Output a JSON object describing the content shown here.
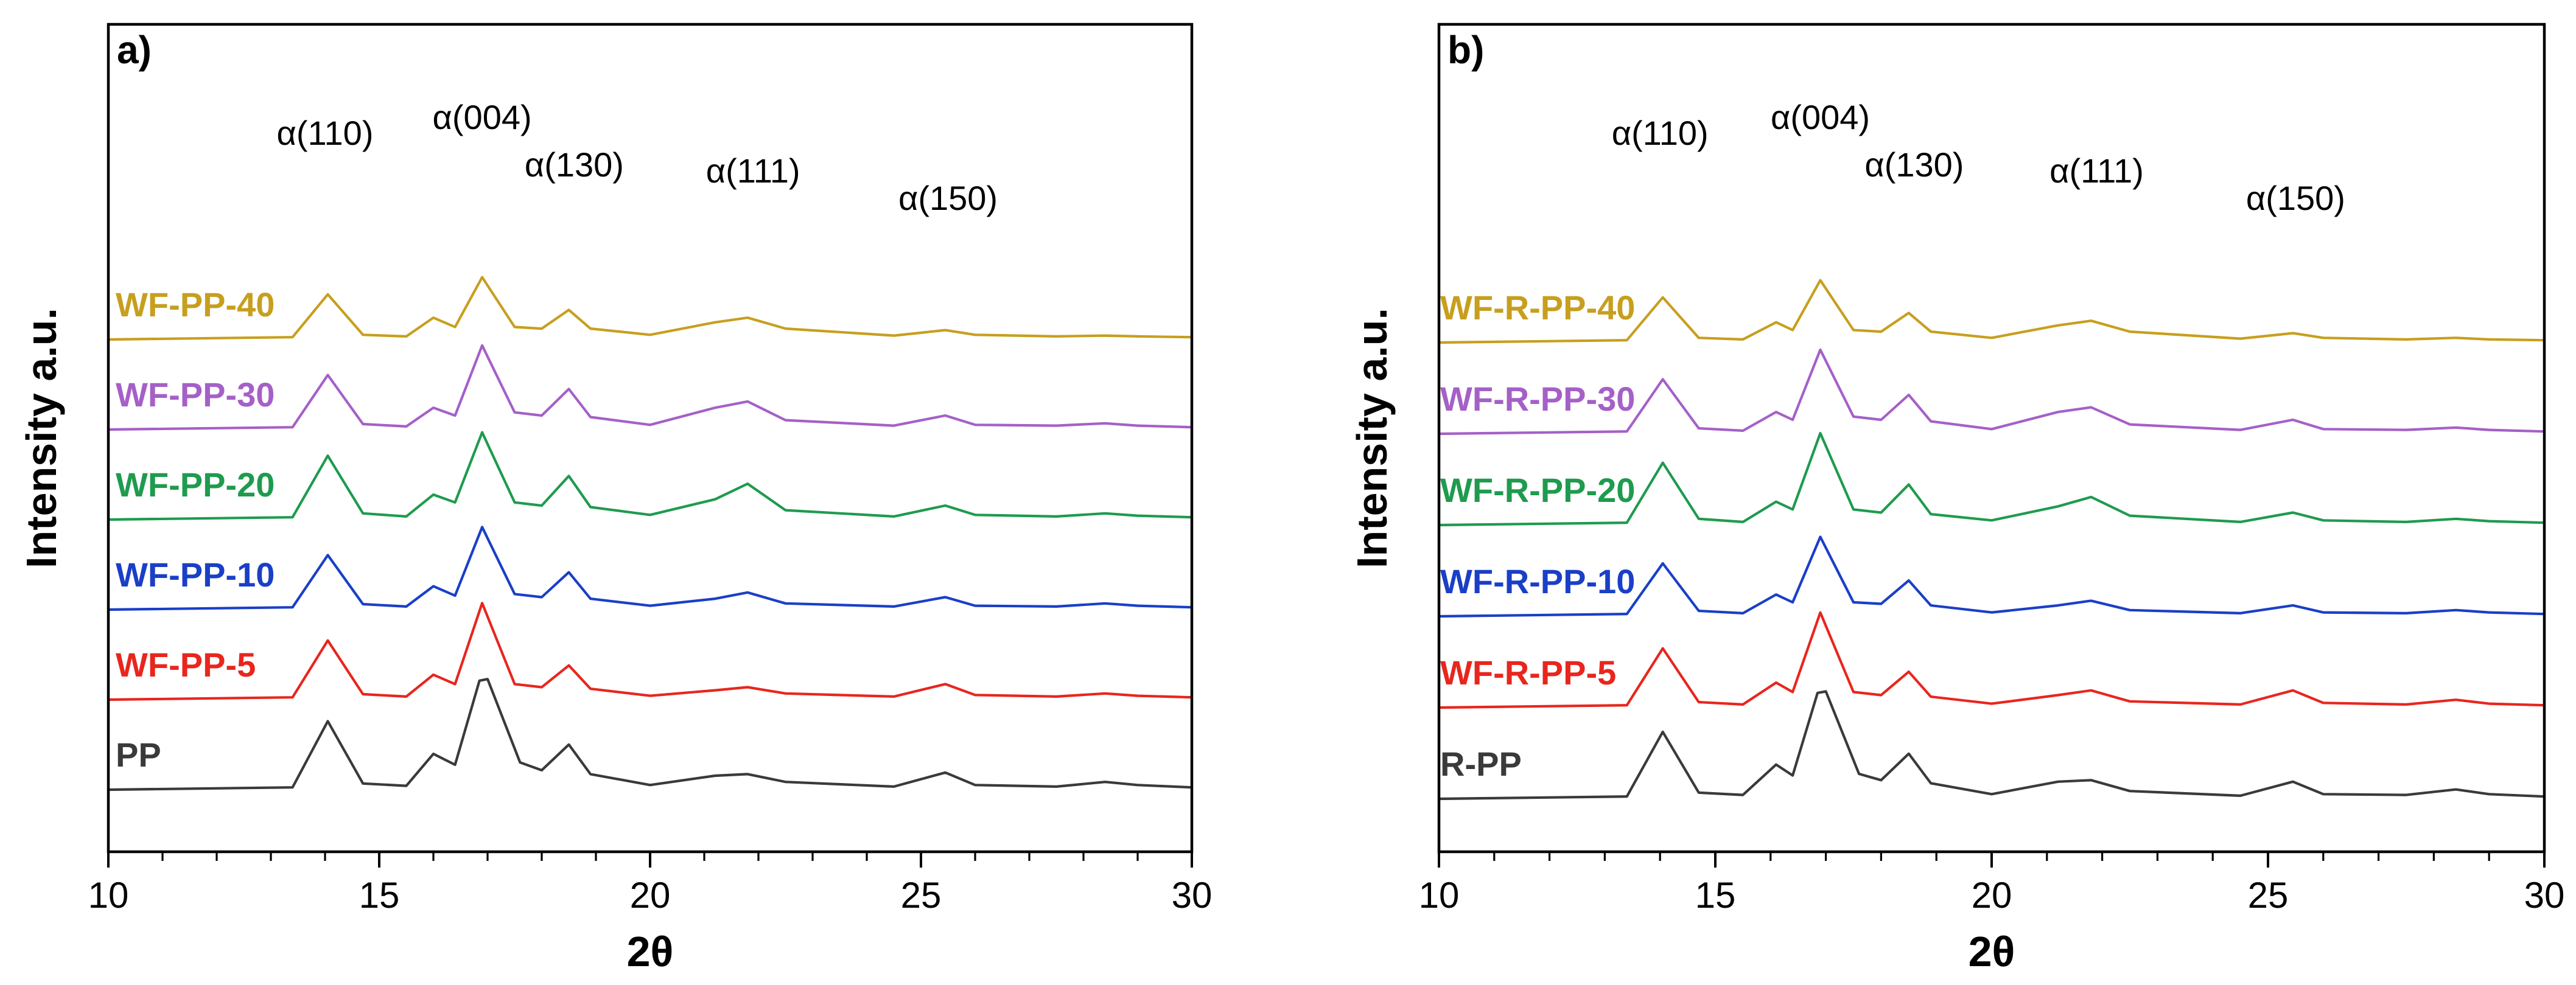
{
  "chart_data": [
    {
      "type": "line",
      "panel_label": "a)",
      "xlabel": "2θ",
      "ylabel": "Intensity a.u.",
      "xlim": [
        10,
        30
      ],
      "x_ticks": [
        10,
        15,
        20,
        25,
        30
      ],
      "y_ticks": [],
      "grid": false,
      "annotations": [
        {
          "text": "α(110)",
          "x": 14.0
        },
        {
          "text": "α(004)",
          "x": 16.9
        },
        {
          "text": "α(130)",
          "x": 18.6
        },
        {
          "text": "α(111)",
          "x": 21.9
        },
        {
          "text": "α(150)",
          "x": 25.5
        }
      ],
      "series": [
        {
          "name": "PP",
          "color": "#3a3a3a",
          "x": [
            10,
            13.4,
            14.05,
            14.7,
            15.5,
            16.0,
            16.4,
            16.85,
            17.0,
            17.6,
            18.0,
            18.5,
            18.9,
            20.0,
            21.2,
            21.8,
            22.5,
            24.5,
            25.45,
            26.0,
            27.5,
            28.4,
            29.0,
            30
          ],
          "y": [
            0,
            0.03,
            0.88,
            0.08,
            0.05,
            0.46,
            0.32,
            1.4,
            1.42,
            0.35,
            0.25,
            0.58,
            0.2,
            0.06,
            0.18,
            0.2,
            0.1,
            0.04,
            0.22,
            0.06,
            0.04,
            0.1,
            0.06,
            0.03
          ]
        },
        {
          "name": "WF-PP-5",
          "color": "#e8261e",
          "x": [
            10,
            13.4,
            14.05,
            14.7,
            15.5,
            16.0,
            16.4,
            16.9,
            17.5,
            18.0,
            18.5,
            18.9,
            20.0,
            21.2,
            21.8,
            22.5,
            24.5,
            25.45,
            26.0,
            27.5,
            28.4,
            29.0,
            30
          ],
          "y": [
            0,
            0.03,
            0.76,
            0.07,
            0.04,
            0.32,
            0.2,
            1.24,
            0.2,
            0.16,
            0.44,
            0.14,
            0.05,
            0.12,
            0.16,
            0.08,
            0.04,
            0.2,
            0.06,
            0.04,
            0.08,
            0.05,
            0.03
          ]
        },
        {
          "name": "WF-PP-10",
          "color": "#1a3fc7",
          "x": [
            10,
            13.4,
            14.05,
            14.7,
            15.5,
            16.0,
            16.4,
            16.9,
            17.5,
            18.0,
            18.5,
            18.9,
            20.0,
            21.2,
            21.8,
            22.5,
            24.5,
            25.45,
            26.0,
            27.5,
            28.4,
            29.0,
            30
          ],
          "y": [
            0,
            0.03,
            0.7,
            0.07,
            0.04,
            0.3,
            0.18,
            1.06,
            0.2,
            0.16,
            0.48,
            0.14,
            0.05,
            0.14,
            0.22,
            0.08,
            0.04,
            0.16,
            0.05,
            0.04,
            0.08,
            0.05,
            0.03
          ]
        },
        {
          "name": "WF-PP-20",
          "color": "#1e9b4e",
          "x": [
            10,
            13.4,
            14.05,
            14.7,
            15.5,
            16.0,
            16.4,
            16.9,
            17.5,
            18.0,
            18.5,
            18.9,
            20.0,
            21.2,
            21.8,
            22.5,
            24.5,
            25.45,
            26.0,
            27.5,
            28.4,
            29.0,
            30
          ],
          "y": [
            0,
            0.03,
            0.82,
            0.08,
            0.04,
            0.32,
            0.22,
            1.12,
            0.22,
            0.18,
            0.56,
            0.16,
            0.06,
            0.26,
            0.46,
            0.12,
            0.04,
            0.18,
            0.06,
            0.04,
            0.08,
            0.05,
            0.03
          ]
        },
        {
          "name": "WF-PP-30",
          "color": "#a560c8",
          "x": [
            10,
            13.4,
            14.05,
            14.7,
            15.5,
            16.0,
            16.4,
            16.9,
            17.5,
            18.0,
            18.5,
            18.9,
            20.0,
            21.2,
            21.8,
            22.5,
            24.5,
            25.45,
            26.0,
            27.5,
            28.4,
            29.0,
            30
          ],
          "y": [
            0,
            0.03,
            0.7,
            0.07,
            0.04,
            0.28,
            0.18,
            1.08,
            0.22,
            0.18,
            0.52,
            0.16,
            0.06,
            0.28,
            0.36,
            0.12,
            0.05,
            0.18,
            0.06,
            0.05,
            0.08,
            0.05,
            0.03
          ]
        },
        {
          "name": "WF-PP-40",
          "color": "#c79f1e",
          "x": [
            10,
            13.4,
            14.05,
            14.7,
            15.5,
            16.0,
            16.4,
            16.9,
            17.5,
            18.0,
            18.5,
            18.9,
            20.0,
            21.2,
            21.8,
            22.5,
            24.5,
            25.45,
            26.0,
            27.5,
            28.4,
            29.0,
            30
          ],
          "y": [
            0,
            0.03,
            0.58,
            0.06,
            0.04,
            0.28,
            0.16,
            0.8,
            0.16,
            0.14,
            0.38,
            0.14,
            0.06,
            0.22,
            0.28,
            0.14,
            0.05,
            0.12,
            0.06,
            0.04,
            0.05,
            0.04,
            0.03
          ]
        }
      ]
    },
    {
      "type": "line",
      "panel_label": "b)",
      "xlabel": "2θ",
      "ylabel": "Intensity a.u.",
      "xlim": [
        10,
        30
      ],
      "x_ticks": [
        10,
        15,
        20,
        25,
        30
      ],
      "y_ticks": [],
      "grid": false,
      "annotations": [
        {
          "text": "α(110)",
          "x": 14.0
        },
        {
          "text": "α(004)",
          "x": 16.9
        },
        {
          "text": "α(130)",
          "x": 18.6
        },
        {
          "text": "α(111)",
          "x": 21.9
        },
        {
          "text": "α(150)",
          "x": 25.5
        }
      ],
      "series": [
        {
          "name": "R-PP",
          "color": "#3a3a3a",
          "x": [
            10,
            13.4,
            14.05,
            14.7,
            15.5,
            16.1,
            16.4,
            16.85,
            17.0,
            17.6,
            18.0,
            18.5,
            18.9,
            20.0,
            21.2,
            21.8,
            22.5,
            24.5,
            25.45,
            26.0,
            27.5,
            28.4,
            29.0,
            30
          ],
          "y": [
            0,
            0.03,
            0.86,
            0.08,
            0.05,
            0.44,
            0.3,
            1.36,
            1.38,
            0.32,
            0.24,
            0.58,
            0.2,
            0.06,
            0.22,
            0.24,
            0.1,
            0.04,
            0.22,
            0.06,
            0.05,
            0.12,
            0.06,
            0.03
          ]
        },
        {
          "name": "WF-R-PP-5",
          "color": "#e8261e",
          "x": [
            10,
            13.4,
            14.05,
            14.7,
            15.5,
            16.1,
            16.4,
            16.9,
            17.5,
            18.0,
            18.5,
            18.9,
            20.0,
            21.2,
            21.8,
            22.5,
            24.5,
            25.45,
            26.0,
            27.5,
            28.4,
            29.0,
            30
          ],
          "y": [
            0,
            0.03,
            0.76,
            0.07,
            0.04,
            0.32,
            0.2,
            1.22,
            0.2,
            0.16,
            0.46,
            0.14,
            0.05,
            0.16,
            0.22,
            0.08,
            0.04,
            0.22,
            0.06,
            0.04,
            0.1,
            0.05,
            0.03
          ]
        },
        {
          "name": "WF-R-PP-10",
          "color": "#1a3fc7",
          "x": [
            10,
            13.4,
            14.05,
            14.7,
            15.5,
            16.1,
            16.4,
            16.9,
            17.5,
            18.0,
            18.5,
            18.9,
            20.0,
            21.2,
            21.8,
            22.5,
            24.5,
            25.45,
            26.0,
            27.5,
            28.4,
            29.0,
            30
          ],
          "y": [
            0,
            0.03,
            0.68,
            0.07,
            0.04,
            0.28,
            0.18,
            1.02,
            0.18,
            0.16,
            0.46,
            0.14,
            0.05,
            0.14,
            0.2,
            0.08,
            0.04,
            0.14,
            0.05,
            0.04,
            0.08,
            0.05,
            0.03
          ]
        },
        {
          "name": "WF-R-PP-20",
          "color": "#1e9b4e",
          "x": [
            10,
            13.4,
            14.05,
            14.7,
            15.5,
            16.1,
            16.4,
            16.9,
            17.5,
            18.0,
            18.5,
            18.9,
            20.0,
            21.2,
            21.8,
            22.5,
            24.5,
            25.45,
            26.0,
            27.5,
            28.4,
            29.0,
            30
          ],
          "y": [
            0,
            0.03,
            0.8,
            0.08,
            0.04,
            0.3,
            0.2,
            1.18,
            0.2,
            0.16,
            0.52,
            0.14,
            0.06,
            0.24,
            0.36,
            0.12,
            0.04,
            0.16,
            0.06,
            0.04,
            0.08,
            0.05,
            0.03
          ]
        },
        {
          "name": "WF-R-PP-30",
          "color": "#a560c8",
          "x": [
            10,
            13.4,
            14.05,
            14.7,
            15.5,
            16.1,
            16.4,
            16.9,
            17.5,
            18.0,
            18.5,
            18.9,
            20.0,
            21.2,
            21.8,
            22.5,
            24.5,
            25.45,
            26.0,
            27.5,
            28.4,
            29.0,
            30
          ],
          "y": [
            0,
            0.03,
            0.7,
            0.07,
            0.04,
            0.28,
            0.18,
            1.08,
            0.22,
            0.18,
            0.5,
            0.16,
            0.06,
            0.28,
            0.34,
            0.12,
            0.05,
            0.18,
            0.06,
            0.05,
            0.08,
            0.05,
            0.03
          ]
        },
        {
          "name": "WF-R-PP-40",
          "color": "#c79f1e",
          "x": [
            10,
            13.4,
            14.05,
            14.7,
            15.5,
            16.1,
            16.4,
            16.9,
            17.5,
            18.0,
            18.5,
            18.9,
            20.0,
            21.2,
            21.8,
            22.5,
            24.5,
            25.45,
            26.0,
            27.5,
            28.4,
            29.0,
            30
          ],
          "y": [
            0,
            0.03,
            0.58,
            0.06,
            0.04,
            0.26,
            0.16,
            0.8,
            0.16,
            0.14,
            0.38,
            0.14,
            0.06,
            0.22,
            0.28,
            0.14,
            0.05,
            0.12,
            0.06,
            0.04,
            0.06,
            0.04,
            0.03
          ]
        }
      ]
    }
  ]
}
